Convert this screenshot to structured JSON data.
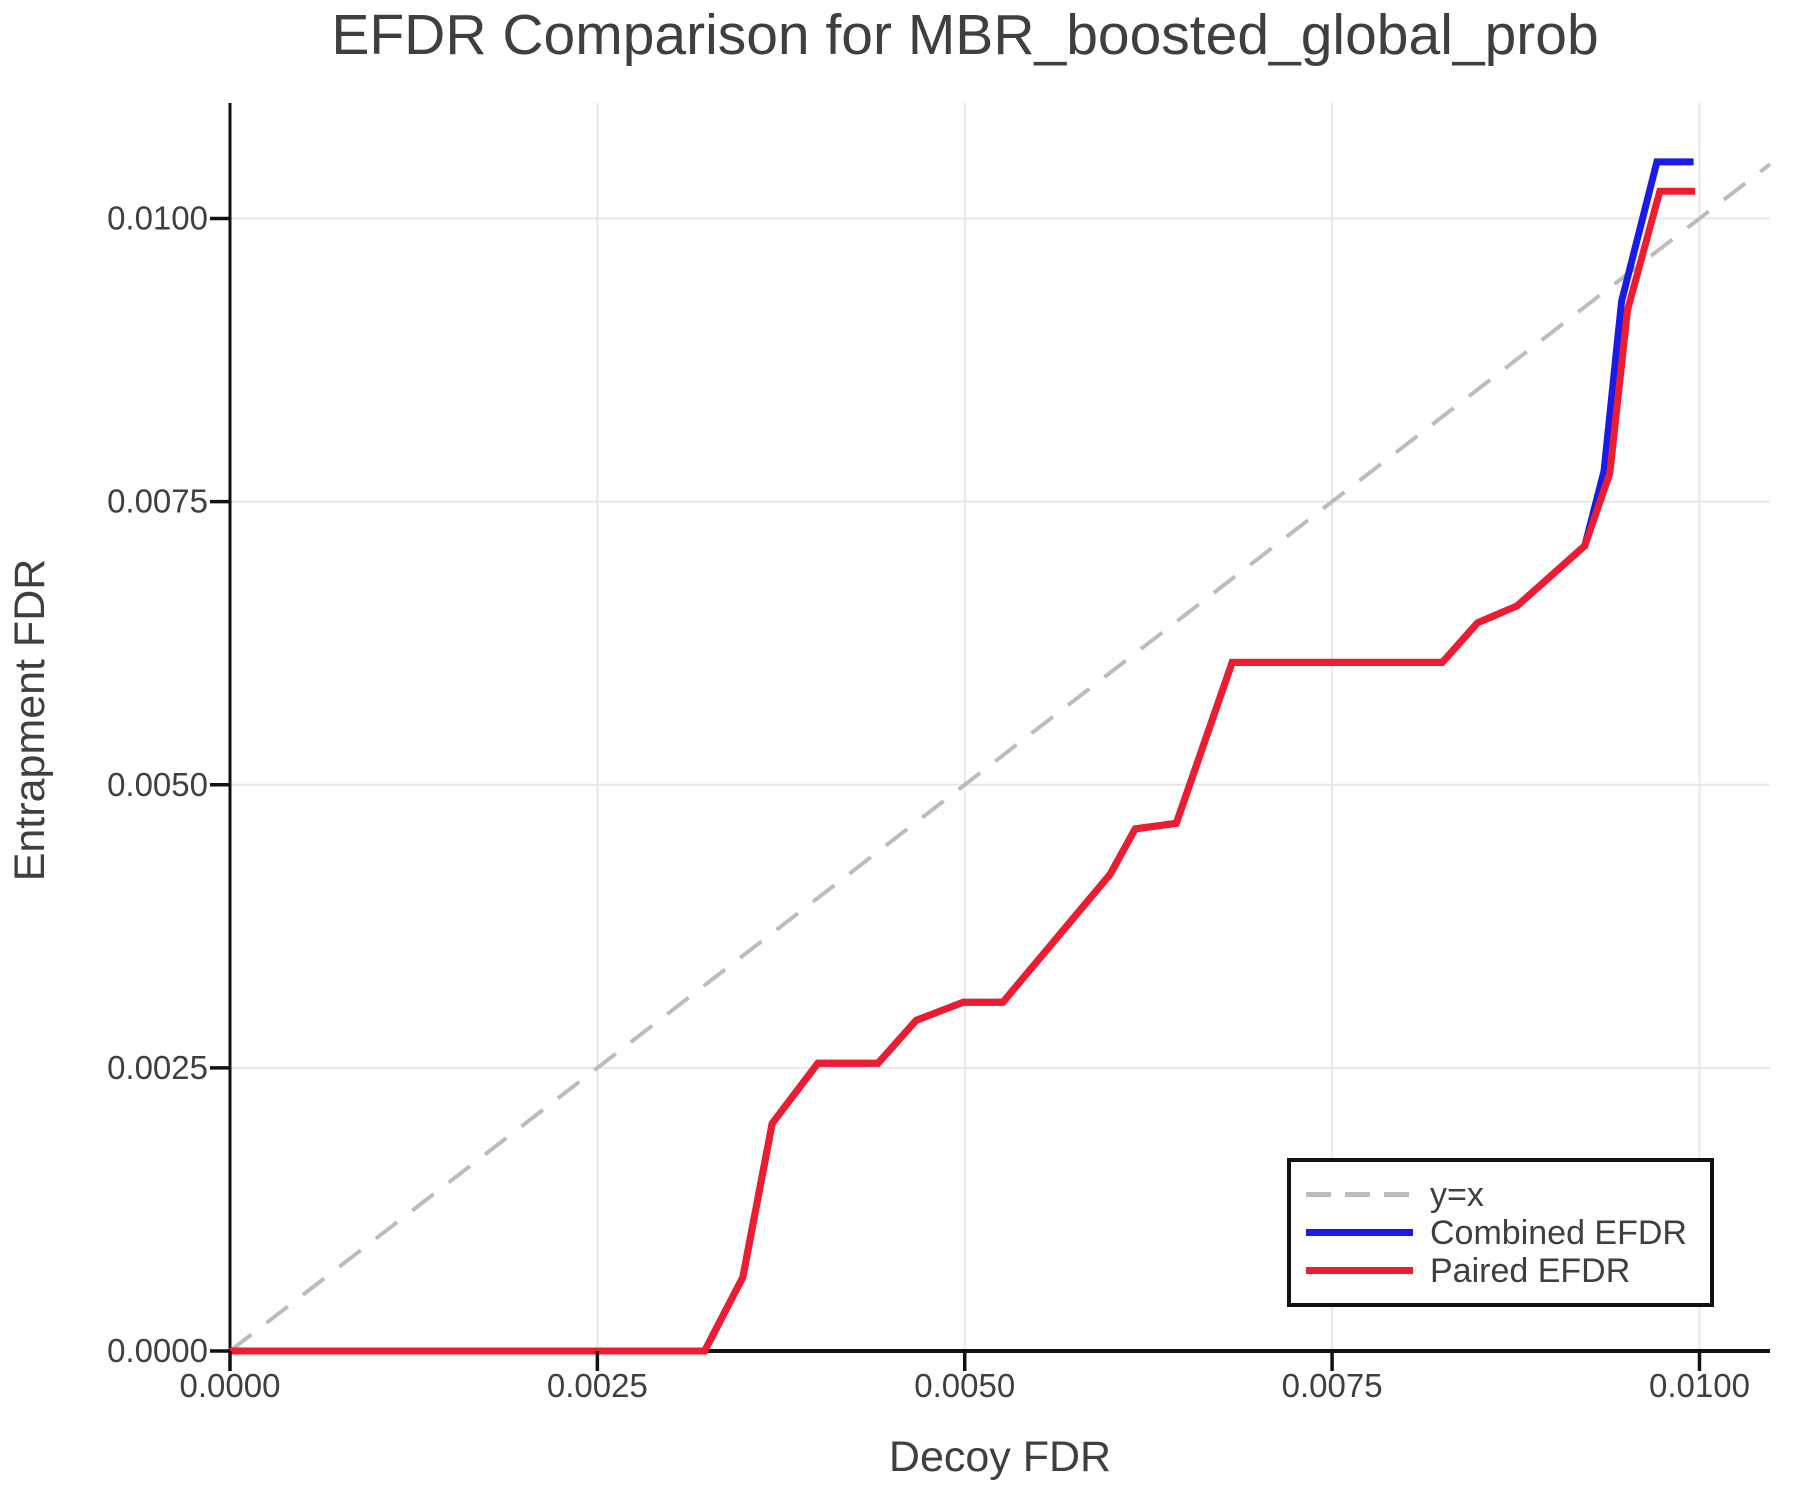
{
  "chart_data": {
    "type": "line",
    "title": "EFDR Comparison for MBR_boosted_global_prob",
    "xlabel": "Decoy FDR",
    "ylabel": "Entrapment FDR",
    "xlim": [
      0,
      0.01048
    ],
    "ylim": [
      0,
      0.01102
    ],
    "grid": true,
    "legend_position": "lower right",
    "x_ticks": {
      "values": [
        0,
        0.0025,
        0.005,
        0.0075,
        0.01
      ],
      "labels": [
        "0.0000",
        "0.0025",
        "0.0050",
        "0.0075",
        "0.0100"
      ]
    },
    "y_ticks": {
      "values": [
        0,
        0.0025,
        0.005,
        0.0075,
        0.01
      ],
      "labels": [
        "0.0000",
        "0.0025",
        "0.0050",
        "0.0075",
        "0.0100"
      ]
    },
    "series": [
      {
        "name": "y=x",
        "color": "#bcbcbc",
        "dash": true,
        "width": 4,
        "points": [
          [
            0,
            0
          ],
          [
            0.01048,
            0.01048
          ]
        ]
      },
      {
        "name": "Combined EFDR",
        "color": "#1b1be8",
        "dash": false,
        "width": 7,
        "points": [
          [
            0.0,
            0.0
          ],
          [
            0.00323,
            0.0
          ],
          [
            0.00349,
            0.00065
          ],
          [
            0.00369,
            0.00201
          ],
          [
            0.004,
            0.00254
          ],
          [
            0.00441,
            0.00254
          ],
          [
            0.00467,
            0.00292
          ],
          [
            0.00499,
            0.00308
          ],
          [
            0.00526,
            0.00308
          ],
          [
            0.00599,
            0.00421
          ],
          [
            0.00616,
            0.00461
          ],
          [
            0.00644,
            0.00466
          ],
          [
            0.00682,
            0.00608
          ],
          [
            0.00825,
            0.00608
          ],
          [
            0.00849,
            0.00643
          ],
          [
            0.00876,
            0.00658
          ],
          [
            0.00922,
            0.00711
          ],
          [
            0.00935,
            0.00777
          ],
          [
            0.00947,
            0.00927
          ],
          [
            0.00971,
            0.0105
          ],
          [
            0.00996,
            0.0105
          ]
        ]
      },
      {
        "name": "Paired EFDR",
        "color": "#ee1c2e",
        "dash": false,
        "width": 7,
        "points": [
          [
            0.0,
            0.0
          ],
          [
            0.00323,
            0.0
          ],
          [
            0.00349,
            0.00065
          ],
          [
            0.00369,
            0.00201
          ],
          [
            0.004,
            0.00254
          ],
          [
            0.00441,
            0.00254
          ],
          [
            0.00467,
            0.00292
          ],
          [
            0.00499,
            0.00308
          ],
          [
            0.00526,
            0.00308
          ],
          [
            0.00599,
            0.00421
          ],
          [
            0.00616,
            0.00461
          ],
          [
            0.00644,
            0.00466
          ],
          [
            0.00682,
            0.00608
          ],
          [
            0.00825,
            0.00608
          ],
          [
            0.00849,
            0.00643
          ],
          [
            0.00876,
            0.00658
          ],
          [
            0.00922,
            0.00711
          ],
          [
            0.00939,
            0.00775
          ],
          [
            0.00951,
            0.00919
          ],
          [
            0.00973,
            0.01024
          ],
          [
            0.00997,
            0.01024
          ]
        ]
      }
    ]
  }
}
